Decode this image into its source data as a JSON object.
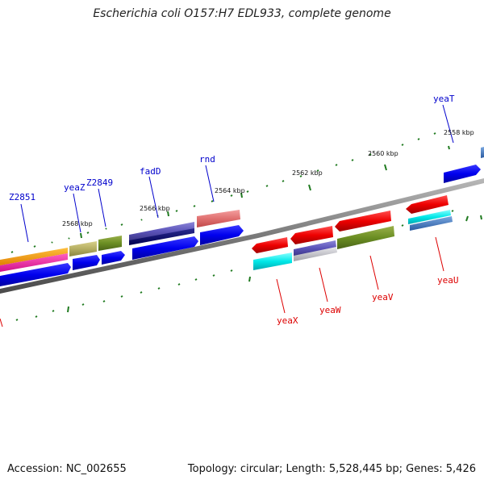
{
  "title": "Escherichia coli O157:H7 EDL933, complete genome",
  "footer": {
    "accession": "Accession: NC_002655",
    "summary": "Topology: circular; Length: 5,528,445 bp; Genes: 5,426"
  },
  "colors": {
    "forward_label": "#0000cc",
    "reverse_label": "#dd0000",
    "backbone": "#7a7a7a",
    "tick": "#1f7a1f"
  },
  "scale_labels": [
    "2558 kbp",
    "2560 kbp",
    "2562 kbp",
    "2564 kbp",
    "2566 kbp",
    "2568 kbp"
  ],
  "forward_genes": [
    "Z2851",
    "yeaZ",
    "Z2849",
    "fadD",
    "rnd",
    "yeaT"
  ],
  "reverse_genes": [
    "yeaX",
    "yeaW",
    "yeaV",
    "yeaU"
  ]
}
